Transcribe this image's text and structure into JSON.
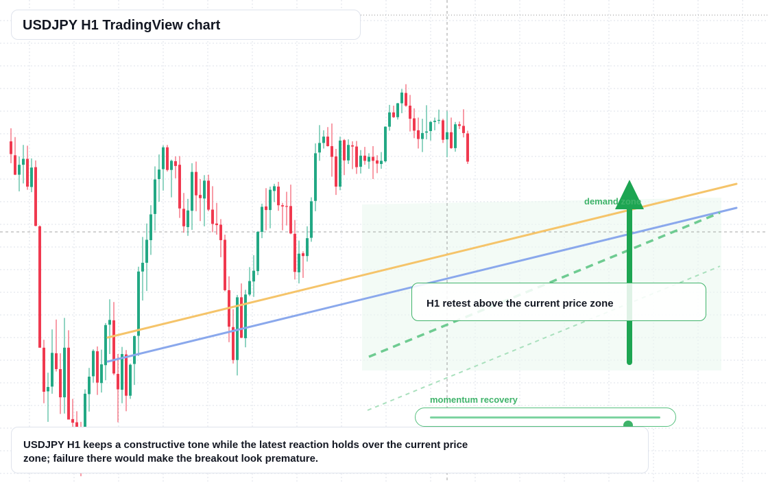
{
  "title": "USDJPY H1 TradingView chart",
  "note": "USDJPY H1 keeps a constructive tone while the latest reaction holds over the current price zone; failure there would make the breakout look premature.",
  "retest_label": "H1 retest above the current price zone",
  "demand_label": "demand zone",
  "momentum": {
    "label": "momentum recovery",
    "value": 0.86
  },
  "colors": {
    "up": "#22a884",
    "down": "#f0394f",
    "trend_orange": "#f5c46a",
    "trend_blue": "#8aa8ec",
    "accent_green": "#1da552",
    "grid": "#dde1ea"
  },
  "chart_data": {
    "type": "candlestick",
    "symbol": "USDJPY",
    "timeframe": "H1",
    "ylim": [
      0,
      100
    ],
    "grid": true,
    "candles": [
      [
        66.1,
        69.4,
        60.6,
        62.9
      ],
      [
        62.6,
        67.2,
        57.6,
        57.7
      ],
      [
        57.7,
        62.3,
        53.5,
        60.2
      ],
      [
        60.2,
        65.2,
        55.5,
        61.7
      ],
      [
        61.7,
        65.0,
        53.9,
        54.7
      ],
      [
        54.6,
        61.8,
        53.3,
        59.5
      ],
      [
        59.6,
        61.3,
        44.7,
        44.8
      ],
      [
        44.7,
        44.9,
        14.1,
        14.1
      ],
      [
        14.1,
        16.1,
        0.1,
        3.0
      ],
      [
        3.1,
        7.8,
        -4.6,
        4.2
      ],
      [
        4.3,
        18.7,
        2.5,
        12.8
      ],
      [
        12.7,
        21.2,
        8.1,
        8.7
      ],
      [
        8.7,
        12.7,
        -2.6,
        1.6
      ],
      [
        1.6,
        21.6,
        -2.5,
        14.1
      ],
      [
        14.1,
        18.5,
        -3.3,
        -4.0
      ],
      [
        -3.9,
        1.2,
        -9.2,
        -4.8
      ],
      [
        -4.7,
        -1.9,
        -15.1,
        -10.6
      ],
      [
        -10.6,
        -4.6,
        -18.3,
        -12.0
      ],
      [
        -12.1,
        3.6,
        -14.0,
        2.5
      ],
      [
        2.4,
        9.0,
        -2.0,
        6.8
      ],
      [
        6.9,
        13.7,
        5.3,
        13.3
      ],
      [
        13.2,
        14.4,
        2.2,
        5.3
      ],
      [
        5.2,
        13.6,
        2.8,
        9.9
      ],
      [
        9.7,
        20.3,
        5.9,
        19.8
      ],
      [
        19.9,
        26.3,
        12.5,
        21.1
      ],
      [
        21.0,
        25.6,
        7.2,
        7.6
      ],
      [
        7.5,
        12.5,
        -4.7,
        3.6
      ],
      [
        3.5,
        14.3,
        0.1,
        12.5
      ],
      [
        12.4,
        13.5,
        -1.9,
        2.0
      ],
      [
        2.0,
        10.1,
        1.2,
        9.8
      ],
      [
        10.0,
        17.2,
        4.7,
        17.0
      ],
      [
        17.1,
        34.5,
        12.0,
        33.3
      ],
      [
        33.3,
        42.0,
        26.0,
        35.5
      ],
      [
        35.5,
        45.4,
        28.4,
        41.3
      ],
      [
        41.2,
        50.0,
        37.5,
        47.7
      ],
      [
        47.8,
        59.8,
        43.6,
        56.5
      ],
      [
        56.6,
        62.8,
        50.9,
        59.0
      ],
      [
        59.1,
        65.1,
        53.7,
        64.6
      ],
      [
        64.6,
        65.2,
        58.5,
        58.9
      ],
      [
        58.9,
        61.5,
        52.0,
        61.2
      ],
      [
        61.1,
        62.3,
        56.8,
        59.9
      ],
      [
        60.2,
        62.4,
        46.8,
        49.2
      ],
      [
        49.1,
        53.1,
        43.1,
        44.7
      ],
      [
        44.5,
        51.6,
        42.3,
        48.7
      ],
      [
        48.6,
        60.6,
        43.8,
        58.4
      ],
      [
        58.4,
        61.0,
        48.5,
        52.5
      ],
      [
        52.6,
        56.6,
        46.0,
        51.8
      ],
      [
        51.7,
        57.6,
        44.7,
        56.2
      ],
      [
        56.2,
        57.7,
        48.5,
        48.9
      ],
      [
        48.9,
        54.8,
        43.2,
        45.3
      ],
      [
        45.4,
        50.6,
        42.6,
        45.0
      ],
      [
        45.1,
        46.5,
        36.9,
        41.2
      ],
      [
        41.3,
        42.6,
        28.3,
        28.6
      ],
      [
        28.6,
        32.1,
        15.5,
        19.4
      ],
      [
        19.3,
        23.8,
        10.1,
        11.0
      ],
      [
        11.0,
        27.4,
        7.1,
        26.8
      ],
      [
        26.8,
        30.3,
        16.5,
        16.6
      ],
      [
        16.5,
        28.7,
        14.2,
        27.5
      ],
      [
        27.5,
        34.4,
        27.1,
        30.9
      ],
      [
        30.8,
        37.4,
        26.9,
        33.5
      ],
      [
        33.4,
        43.5,
        32.4,
        43.3
      ],
      [
        43.3,
        50.4,
        41.7,
        49.6
      ],
      [
        49.7,
        54.3,
        43.7,
        48.8
      ],
      [
        48.8,
        54.7,
        44.2,
        53.9
      ],
      [
        53.6,
        55.4,
        50.8,
        54.8
      ],
      [
        54.7,
        55.9,
        48.6,
        50.0
      ],
      [
        50.0,
        50.6,
        43.7,
        49.7
      ],
      [
        49.8,
        53.4,
        44.9,
        49.6
      ],
      [
        49.8,
        55.2,
        42.7,
        42.9
      ],
      [
        42.8,
        46.3,
        31.3,
        33.2
      ],
      [
        33.1,
        41.1,
        30.3,
        37.8
      ],
      [
        37.9,
        38.4,
        31.7,
        37.2
      ],
      [
        37.2,
        44.7,
        35.8,
        41.7
      ],
      [
        41.8,
        52.0,
        40.8,
        51.0
      ],
      [
        51.1,
        65.6,
        48.5,
        63.1
      ],
      [
        63.3,
        70.2,
        61.2,
        65.7
      ],
      [
        65.7,
        68.9,
        64.3,
        67.3
      ],
      [
        67.3,
        69.7,
        64.8,
        64.9
      ],
      [
        64.9,
        70.6,
        57.2,
        62.2
      ],
      [
        62.3,
        64.2,
        52.6,
        54.7
      ],
      [
        54.7,
        67.3,
        53.8,
        66.3
      ],
      [
        66.4,
        66.7,
        57.6,
        61.3
      ],
      [
        61.3,
        66.6,
        60.4,
        65.2
      ],
      [
        65.1,
        66.1,
        59.1,
        64.8
      ],
      [
        64.8,
        66.2,
        57.9,
        59.6
      ],
      [
        59.7,
        63.9,
        58.0,
        62.5
      ],
      [
        62.5,
        64.7,
        60.2,
        61.2
      ],
      [
        61.0,
        63.1,
        59.2,
        62.2
      ],
      [
        62.2,
        64.9,
        56.6,
        61.2
      ],
      [
        61.3,
        62.6,
        58.1,
        60.5
      ],
      [
        60.4,
        63.4,
        59.2,
        61.2
      ],
      [
        61.1,
        69.9,
        60.8,
        69.8
      ],
      [
        69.8,
        75.3,
        68.8,
        73.4
      ],
      [
        73.4,
        75.1,
        72.0,
        72.2
      ],
      [
        72.2,
        75.8,
        71.6,
        75.7
      ],
      [
        75.7,
        79.3,
        73.2,
        78.4
      ],
      [
        78.3,
        80.5,
        74.8,
        75.1
      ],
      [
        75.1,
        77.8,
        68.6,
        71.8
      ],
      [
        71.9,
        74.4,
        66.9,
        68.8
      ],
      [
        68.9,
        72.1,
        64.3,
        66.7
      ],
      [
        66.7,
        71.8,
        63.4,
        68.2
      ],
      [
        68.3,
        75.2,
        66.6,
        68.6
      ],
      [
        68.7,
        71.2,
        66.3,
        71.0
      ],
      [
        71.0,
        72.1,
        68.9,
        71.3
      ],
      [
        71.3,
        74.1,
        70.5,
        71.5
      ],
      [
        71.4,
        71.8,
        65.7,
        66.5
      ],
      [
        66.6,
        73.7,
        62.1,
        68.4
      ],
      [
        68.4,
        72.1,
        64.2,
        64.4
      ],
      [
        64.4,
        71.0,
        63.5,
        70.4
      ],
      [
        70.4,
        71.1,
        69.2,
        70.0
      ],
      [
        70.0,
        74.2,
        67.1,
        68.2
      ],
      [
        68.1,
        68.8,
        60.4,
        61.0
      ]
    ]
  }
}
